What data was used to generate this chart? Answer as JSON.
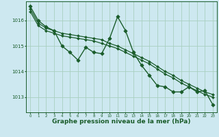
{
  "background_color": "#cde8f0",
  "grid_color": "#a8cfc0",
  "line_color": "#1a5c2a",
  "marker_color": "#1a5c2a",
  "xlabel": "Graphe pression niveau de la mer (hPa)",
  "xlabel_fontsize": 6.5,
  "ylabel_ticks": [
    1013,
    1014,
    1015,
    1016
  ],
  "xlim": [
    -0.5,
    23.5
  ],
  "ylim": [
    1012.4,
    1016.75
  ],
  "series": [
    {
      "x": [
        0,
        1,
        2,
        3,
        4,
        5,
        6,
        7,
        8,
        9,
        10,
        11,
        12,
        13,
        14,
        15,
        16,
        17,
        18,
        19,
        20,
        21,
        22,
        23
      ],
      "y": [
        1016.55,
        1016.0,
        1015.75,
        1015.6,
        1015.0,
        1014.75,
        1014.45,
        1014.95,
        1014.75,
        1014.7,
        1015.3,
        1016.15,
        1015.6,
        1014.75,
        1014.25,
        1013.85,
        1013.45,
        1013.4,
        1013.2,
        1013.2,
        1013.4,
        1013.2,
        1013.25,
        1012.7
      ],
      "marker": "D",
      "markersize": 2.8,
      "linewidth": 1.0
    },
    {
      "x": [
        0,
        1,
        2,
        3,
        4,
        5,
        6,
        7,
        8,
        9,
        10,
        11,
        12,
        13,
        14,
        15,
        16,
        17,
        18,
        19,
        20,
        21,
        22,
        23
      ],
      "y": [
        1016.45,
        1015.9,
        1015.7,
        1015.6,
        1015.5,
        1015.45,
        1015.4,
        1015.35,
        1015.3,
        1015.25,
        1015.1,
        1015.0,
        1014.85,
        1014.7,
        1014.55,
        1014.4,
        1014.2,
        1014.0,
        1013.85,
        1013.65,
        1013.5,
        1013.35,
        1013.2,
        1013.1
      ],
      "marker": "D",
      "markersize": 2.0,
      "linewidth": 0.9
    },
    {
      "x": [
        0,
        1,
        2,
        3,
        4,
        5,
        6,
        7,
        8,
        9,
        10,
        11,
        12,
        13,
        14,
        15,
        16,
        17,
        18,
        19,
        20,
        21,
        22,
        23
      ],
      "y": [
        1016.35,
        1015.8,
        1015.6,
        1015.5,
        1015.4,
        1015.35,
        1015.3,
        1015.25,
        1015.2,
        1015.1,
        1015.0,
        1014.9,
        1014.75,
        1014.6,
        1014.45,
        1014.3,
        1014.1,
        1013.9,
        1013.75,
        1013.55,
        1013.4,
        1013.25,
        1013.1,
        1013.0
      ],
      "marker": "D",
      "markersize": 2.0,
      "linewidth": 0.9
    }
  ],
  "xticks": [
    0,
    1,
    2,
    3,
    4,
    5,
    6,
    7,
    8,
    9,
    10,
    11,
    12,
    13,
    14,
    15,
    16,
    17,
    18,
    19,
    20,
    21,
    22,
    23
  ],
  "xtick_fontsize": 4.0,
  "ytick_fontsize": 5.0
}
